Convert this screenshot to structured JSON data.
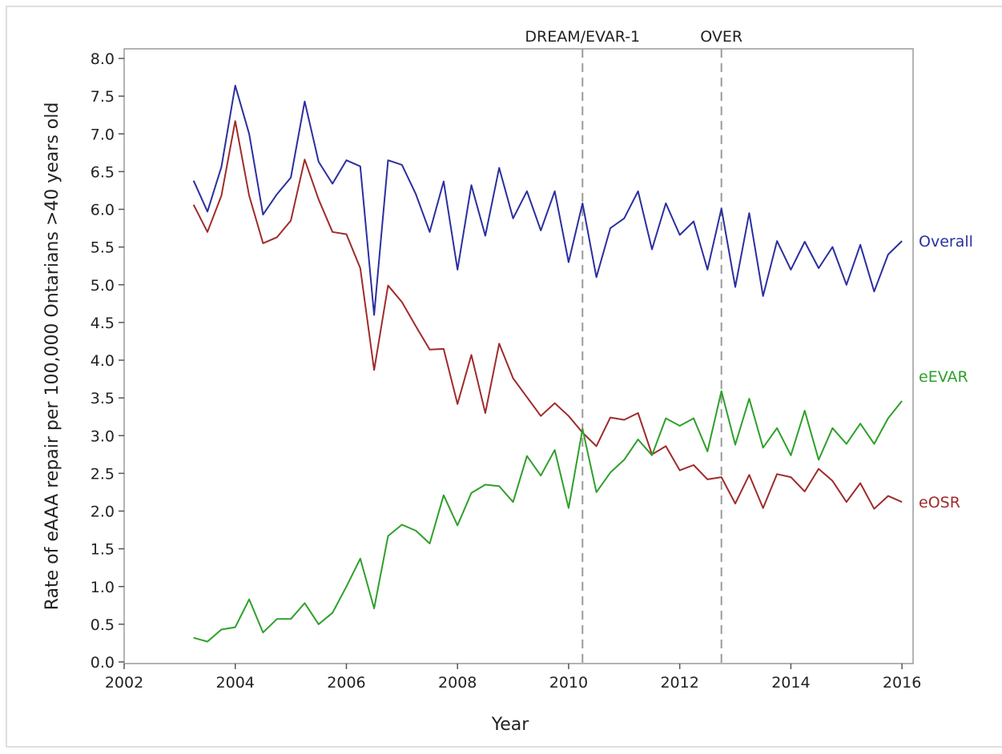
{
  "chart_data": {
    "type": "line",
    "title": "",
    "xlabel": "Year",
    "ylabel": "Rate of eAAA repair per 100,000 Ontarians >40 years old",
    "xlim": [
      2002,
      2016.2
    ],
    "ylim": [
      0,
      8.0
    ],
    "x_ticks": [
      2002,
      2004,
      2006,
      2008,
      2010,
      2012,
      2014,
      2016
    ],
    "y_ticks": [
      "0.0",
      "0.5",
      "1.0",
      "1.5",
      "2.0",
      "2.5",
      "3.0",
      "3.5",
      "4.0",
      "4.5",
      "5.0",
      "5.5",
      "6.0",
      "6.5",
      "7.0",
      "7.5",
      "8.0"
    ],
    "grid": false,
    "legend": "inline labels at right end of each series",
    "reference_lines": [
      {
        "x": 2010.25,
        "label": "DREAM/EVAR-1",
        "style": "dashed"
      },
      {
        "x": 2012.75,
        "label": "OVER",
        "style": "dashed"
      }
    ],
    "x": [
      2003.25,
      2003.5,
      2003.75,
      2004.0,
      2004.25,
      2004.5,
      2004.75,
      2005.0,
      2005.25,
      2005.5,
      2005.75,
      2006.0,
      2006.25,
      2006.5,
      2006.75,
      2007.0,
      2007.25,
      2007.5,
      2007.75,
      2008.0,
      2008.25,
      2008.5,
      2008.75,
      2009.0,
      2009.25,
      2009.5,
      2009.75,
      2010.0,
      2010.25,
      2010.5,
      2010.75,
      2011.0,
      2011.25,
      2011.5,
      2011.75,
      2012.0,
      2012.25,
      2012.5,
      2012.75,
      2013.0,
      2013.25,
      2013.5,
      2013.75,
      2014.0,
      2014.25,
      2014.5,
      2014.75,
      2015.0,
      2015.25,
      2015.5,
      2015.75,
      2016.0
    ],
    "series": [
      {
        "name": "Overall",
        "color": "#2b2fa0",
        "values": [
          6.38,
          5.97,
          6.56,
          7.64,
          7.0,
          5.93,
          6.2,
          6.42,
          7.43,
          6.63,
          6.34,
          6.65,
          6.57,
          4.6,
          6.65,
          6.59,
          6.2,
          5.7,
          6.37,
          5.2,
          6.32,
          5.65,
          6.55,
          5.88,
          6.24,
          5.72,
          6.24,
          5.3,
          6.08,
          5.1,
          5.75,
          5.88,
          6.24,
          5.47,
          6.08,
          5.66,
          5.84,
          5.2,
          6.01,
          4.97,
          5.95,
          4.85,
          5.58,
          5.2,
          5.57,
          5.22,
          5.5,
          5.0,
          5.53,
          4.91,
          5.4,
          5.58
        ]
      },
      {
        "name": "eOSR",
        "color": "#a02b2b",
        "values": [
          6.06,
          5.7,
          6.18,
          7.17,
          6.18,
          5.55,
          5.63,
          5.85,
          6.66,
          6.13,
          5.7,
          5.67,
          5.22,
          3.87,
          4.99,
          4.77,
          4.45,
          4.14,
          4.15,
          3.42,
          4.07,
          3.3,
          4.22,
          3.76,
          3.51,
          3.26,
          3.43,
          3.26,
          3.04,
          2.86,
          3.24,
          3.21,
          3.3,
          2.75,
          2.86,
          2.54,
          2.61,
          2.42,
          2.45,
          2.1,
          2.48,
          2.04,
          2.49,
          2.45,
          2.26,
          2.56,
          2.4,
          2.12,
          2.37,
          2.03,
          2.2,
          2.12
        ]
      },
      {
        "name": "eEVAR",
        "color": "#2ea02b",
        "values": [
          0.32,
          0.27,
          0.43,
          0.46,
          0.83,
          0.39,
          0.57,
          0.57,
          0.78,
          0.5,
          0.65,
          1.0,
          1.37,
          0.71,
          1.67,
          1.82,
          1.74,
          1.57,
          2.21,
          1.81,
          2.24,
          2.35,
          2.33,
          2.12,
          2.73,
          2.47,
          2.81,
          2.04,
          3.09,
          2.25,
          2.51,
          2.68,
          2.95,
          2.74,
          3.23,
          3.13,
          3.23,
          2.79,
          3.59,
          2.88,
          3.49,
          2.84,
          3.1,
          2.74,
          3.33,
          2.68,
          3.1,
          2.89,
          3.16,
          2.89,
          3.23,
          3.46
        ]
      }
    ]
  }
}
